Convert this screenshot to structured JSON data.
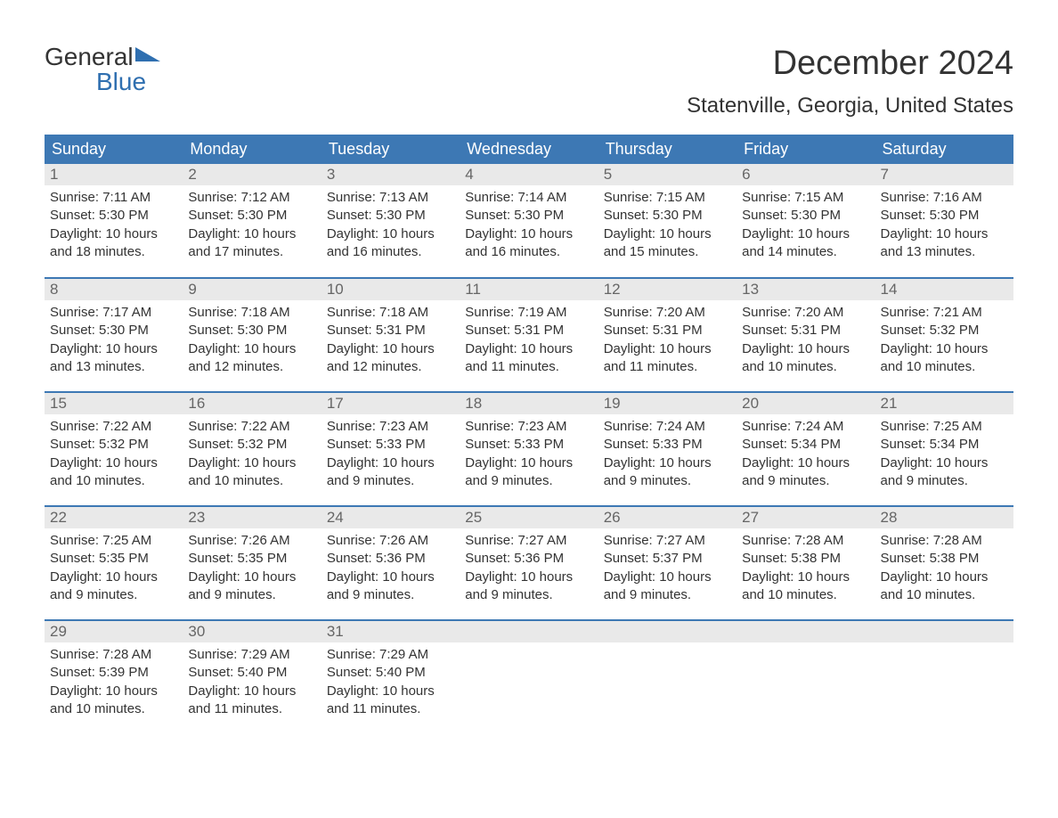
{
  "logo": {
    "word1": "General",
    "word2": "Blue",
    "accent_color": "#2f6fb0",
    "text_color": "#333333"
  },
  "title": "December 2024",
  "location": "Statenville, Georgia, United States",
  "header_bg": "#3d78b4",
  "header_fg": "#ffffff",
  "daynum_bg": "#e9e9e9",
  "daynum_fg": "#666666",
  "row_border": "#3d78b4",
  "text_color": "#333333",
  "background_color": "#ffffff",
  "weekdays": [
    "Sunday",
    "Monday",
    "Tuesday",
    "Wednesday",
    "Thursday",
    "Friday",
    "Saturday"
  ],
  "weeks": [
    [
      {
        "n": "1",
        "sunrise": "Sunrise: 7:11 AM",
        "sunset": "Sunset: 5:30 PM",
        "d1": "Daylight: 10 hours",
        "d2": "and 18 minutes."
      },
      {
        "n": "2",
        "sunrise": "Sunrise: 7:12 AM",
        "sunset": "Sunset: 5:30 PM",
        "d1": "Daylight: 10 hours",
        "d2": "and 17 minutes."
      },
      {
        "n": "3",
        "sunrise": "Sunrise: 7:13 AM",
        "sunset": "Sunset: 5:30 PM",
        "d1": "Daylight: 10 hours",
        "d2": "and 16 minutes."
      },
      {
        "n": "4",
        "sunrise": "Sunrise: 7:14 AM",
        "sunset": "Sunset: 5:30 PM",
        "d1": "Daylight: 10 hours",
        "d2": "and 16 minutes."
      },
      {
        "n": "5",
        "sunrise": "Sunrise: 7:15 AM",
        "sunset": "Sunset: 5:30 PM",
        "d1": "Daylight: 10 hours",
        "d2": "and 15 minutes."
      },
      {
        "n": "6",
        "sunrise": "Sunrise: 7:15 AM",
        "sunset": "Sunset: 5:30 PM",
        "d1": "Daylight: 10 hours",
        "d2": "and 14 minutes."
      },
      {
        "n": "7",
        "sunrise": "Sunrise: 7:16 AM",
        "sunset": "Sunset: 5:30 PM",
        "d1": "Daylight: 10 hours",
        "d2": "and 13 minutes."
      }
    ],
    [
      {
        "n": "8",
        "sunrise": "Sunrise: 7:17 AM",
        "sunset": "Sunset: 5:30 PM",
        "d1": "Daylight: 10 hours",
        "d2": "and 13 minutes."
      },
      {
        "n": "9",
        "sunrise": "Sunrise: 7:18 AM",
        "sunset": "Sunset: 5:30 PM",
        "d1": "Daylight: 10 hours",
        "d2": "and 12 minutes."
      },
      {
        "n": "10",
        "sunrise": "Sunrise: 7:18 AM",
        "sunset": "Sunset: 5:31 PM",
        "d1": "Daylight: 10 hours",
        "d2": "and 12 minutes."
      },
      {
        "n": "11",
        "sunrise": "Sunrise: 7:19 AM",
        "sunset": "Sunset: 5:31 PM",
        "d1": "Daylight: 10 hours",
        "d2": "and 11 minutes."
      },
      {
        "n": "12",
        "sunrise": "Sunrise: 7:20 AM",
        "sunset": "Sunset: 5:31 PM",
        "d1": "Daylight: 10 hours",
        "d2": "and 11 minutes."
      },
      {
        "n": "13",
        "sunrise": "Sunrise: 7:20 AM",
        "sunset": "Sunset: 5:31 PM",
        "d1": "Daylight: 10 hours",
        "d2": "and 10 minutes."
      },
      {
        "n": "14",
        "sunrise": "Sunrise: 7:21 AM",
        "sunset": "Sunset: 5:32 PM",
        "d1": "Daylight: 10 hours",
        "d2": "and 10 minutes."
      }
    ],
    [
      {
        "n": "15",
        "sunrise": "Sunrise: 7:22 AM",
        "sunset": "Sunset: 5:32 PM",
        "d1": "Daylight: 10 hours",
        "d2": "and 10 minutes."
      },
      {
        "n": "16",
        "sunrise": "Sunrise: 7:22 AM",
        "sunset": "Sunset: 5:32 PM",
        "d1": "Daylight: 10 hours",
        "d2": "and 10 minutes."
      },
      {
        "n": "17",
        "sunrise": "Sunrise: 7:23 AM",
        "sunset": "Sunset: 5:33 PM",
        "d1": "Daylight: 10 hours",
        "d2": "and 9 minutes."
      },
      {
        "n": "18",
        "sunrise": "Sunrise: 7:23 AM",
        "sunset": "Sunset: 5:33 PM",
        "d1": "Daylight: 10 hours",
        "d2": "and 9 minutes."
      },
      {
        "n": "19",
        "sunrise": "Sunrise: 7:24 AM",
        "sunset": "Sunset: 5:33 PM",
        "d1": "Daylight: 10 hours",
        "d2": "and 9 minutes."
      },
      {
        "n": "20",
        "sunrise": "Sunrise: 7:24 AM",
        "sunset": "Sunset: 5:34 PM",
        "d1": "Daylight: 10 hours",
        "d2": "and 9 minutes."
      },
      {
        "n": "21",
        "sunrise": "Sunrise: 7:25 AM",
        "sunset": "Sunset: 5:34 PM",
        "d1": "Daylight: 10 hours",
        "d2": "and 9 minutes."
      }
    ],
    [
      {
        "n": "22",
        "sunrise": "Sunrise: 7:25 AM",
        "sunset": "Sunset: 5:35 PM",
        "d1": "Daylight: 10 hours",
        "d2": "and 9 minutes."
      },
      {
        "n": "23",
        "sunrise": "Sunrise: 7:26 AM",
        "sunset": "Sunset: 5:35 PM",
        "d1": "Daylight: 10 hours",
        "d2": "and 9 minutes."
      },
      {
        "n": "24",
        "sunrise": "Sunrise: 7:26 AM",
        "sunset": "Sunset: 5:36 PM",
        "d1": "Daylight: 10 hours",
        "d2": "and 9 minutes."
      },
      {
        "n": "25",
        "sunrise": "Sunrise: 7:27 AM",
        "sunset": "Sunset: 5:36 PM",
        "d1": "Daylight: 10 hours",
        "d2": "and 9 minutes."
      },
      {
        "n": "26",
        "sunrise": "Sunrise: 7:27 AM",
        "sunset": "Sunset: 5:37 PM",
        "d1": "Daylight: 10 hours",
        "d2": "and 9 minutes."
      },
      {
        "n": "27",
        "sunrise": "Sunrise: 7:28 AM",
        "sunset": "Sunset: 5:38 PM",
        "d1": "Daylight: 10 hours",
        "d2": "and 10 minutes."
      },
      {
        "n": "28",
        "sunrise": "Sunrise: 7:28 AM",
        "sunset": "Sunset: 5:38 PM",
        "d1": "Daylight: 10 hours",
        "d2": "and 10 minutes."
      }
    ],
    [
      {
        "n": "29",
        "sunrise": "Sunrise: 7:28 AM",
        "sunset": "Sunset: 5:39 PM",
        "d1": "Daylight: 10 hours",
        "d2": "and 10 minutes."
      },
      {
        "n": "30",
        "sunrise": "Sunrise: 7:29 AM",
        "sunset": "Sunset: 5:40 PM",
        "d1": "Daylight: 10 hours",
        "d2": "and 11 minutes."
      },
      {
        "n": "31",
        "sunrise": "Sunrise: 7:29 AM",
        "sunset": "Sunset: 5:40 PM",
        "d1": "Daylight: 10 hours",
        "d2": "and 11 minutes."
      },
      {
        "n": "",
        "sunrise": "",
        "sunset": "",
        "d1": "",
        "d2": ""
      },
      {
        "n": "",
        "sunrise": "",
        "sunset": "",
        "d1": "",
        "d2": ""
      },
      {
        "n": "",
        "sunrise": "",
        "sunset": "",
        "d1": "",
        "d2": ""
      },
      {
        "n": "",
        "sunrise": "",
        "sunset": "",
        "d1": "",
        "d2": ""
      }
    ]
  ]
}
